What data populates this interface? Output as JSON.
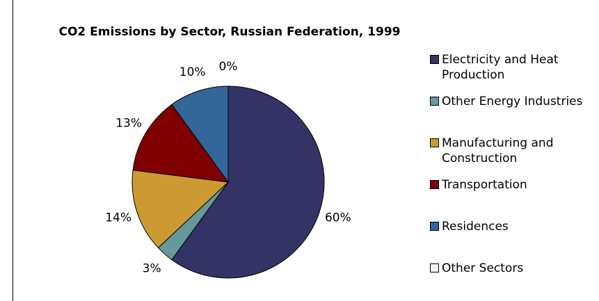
{
  "chart_data": {
    "type": "pie",
    "title": "CO2 Emissions by Sector, Russian Federation, 1999",
    "categories": [
      "Electricity and Heat Production",
      "Other Energy Industries",
      "Manufacturing and Construction",
      "Transportation",
      "Residences",
      "Other Sectors"
    ],
    "values": [
      60,
      3,
      14,
      13,
      10,
      0
    ],
    "value_labels": [
      "60%",
      "3%",
      "14%",
      "13%",
      "10%",
      "0%"
    ],
    "colors": [
      "#333366",
      "#669999",
      "#cc9933",
      "#800000",
      "#336699",
      "#f2f2f2"
    ],
    "legend": "right"
  }
}
